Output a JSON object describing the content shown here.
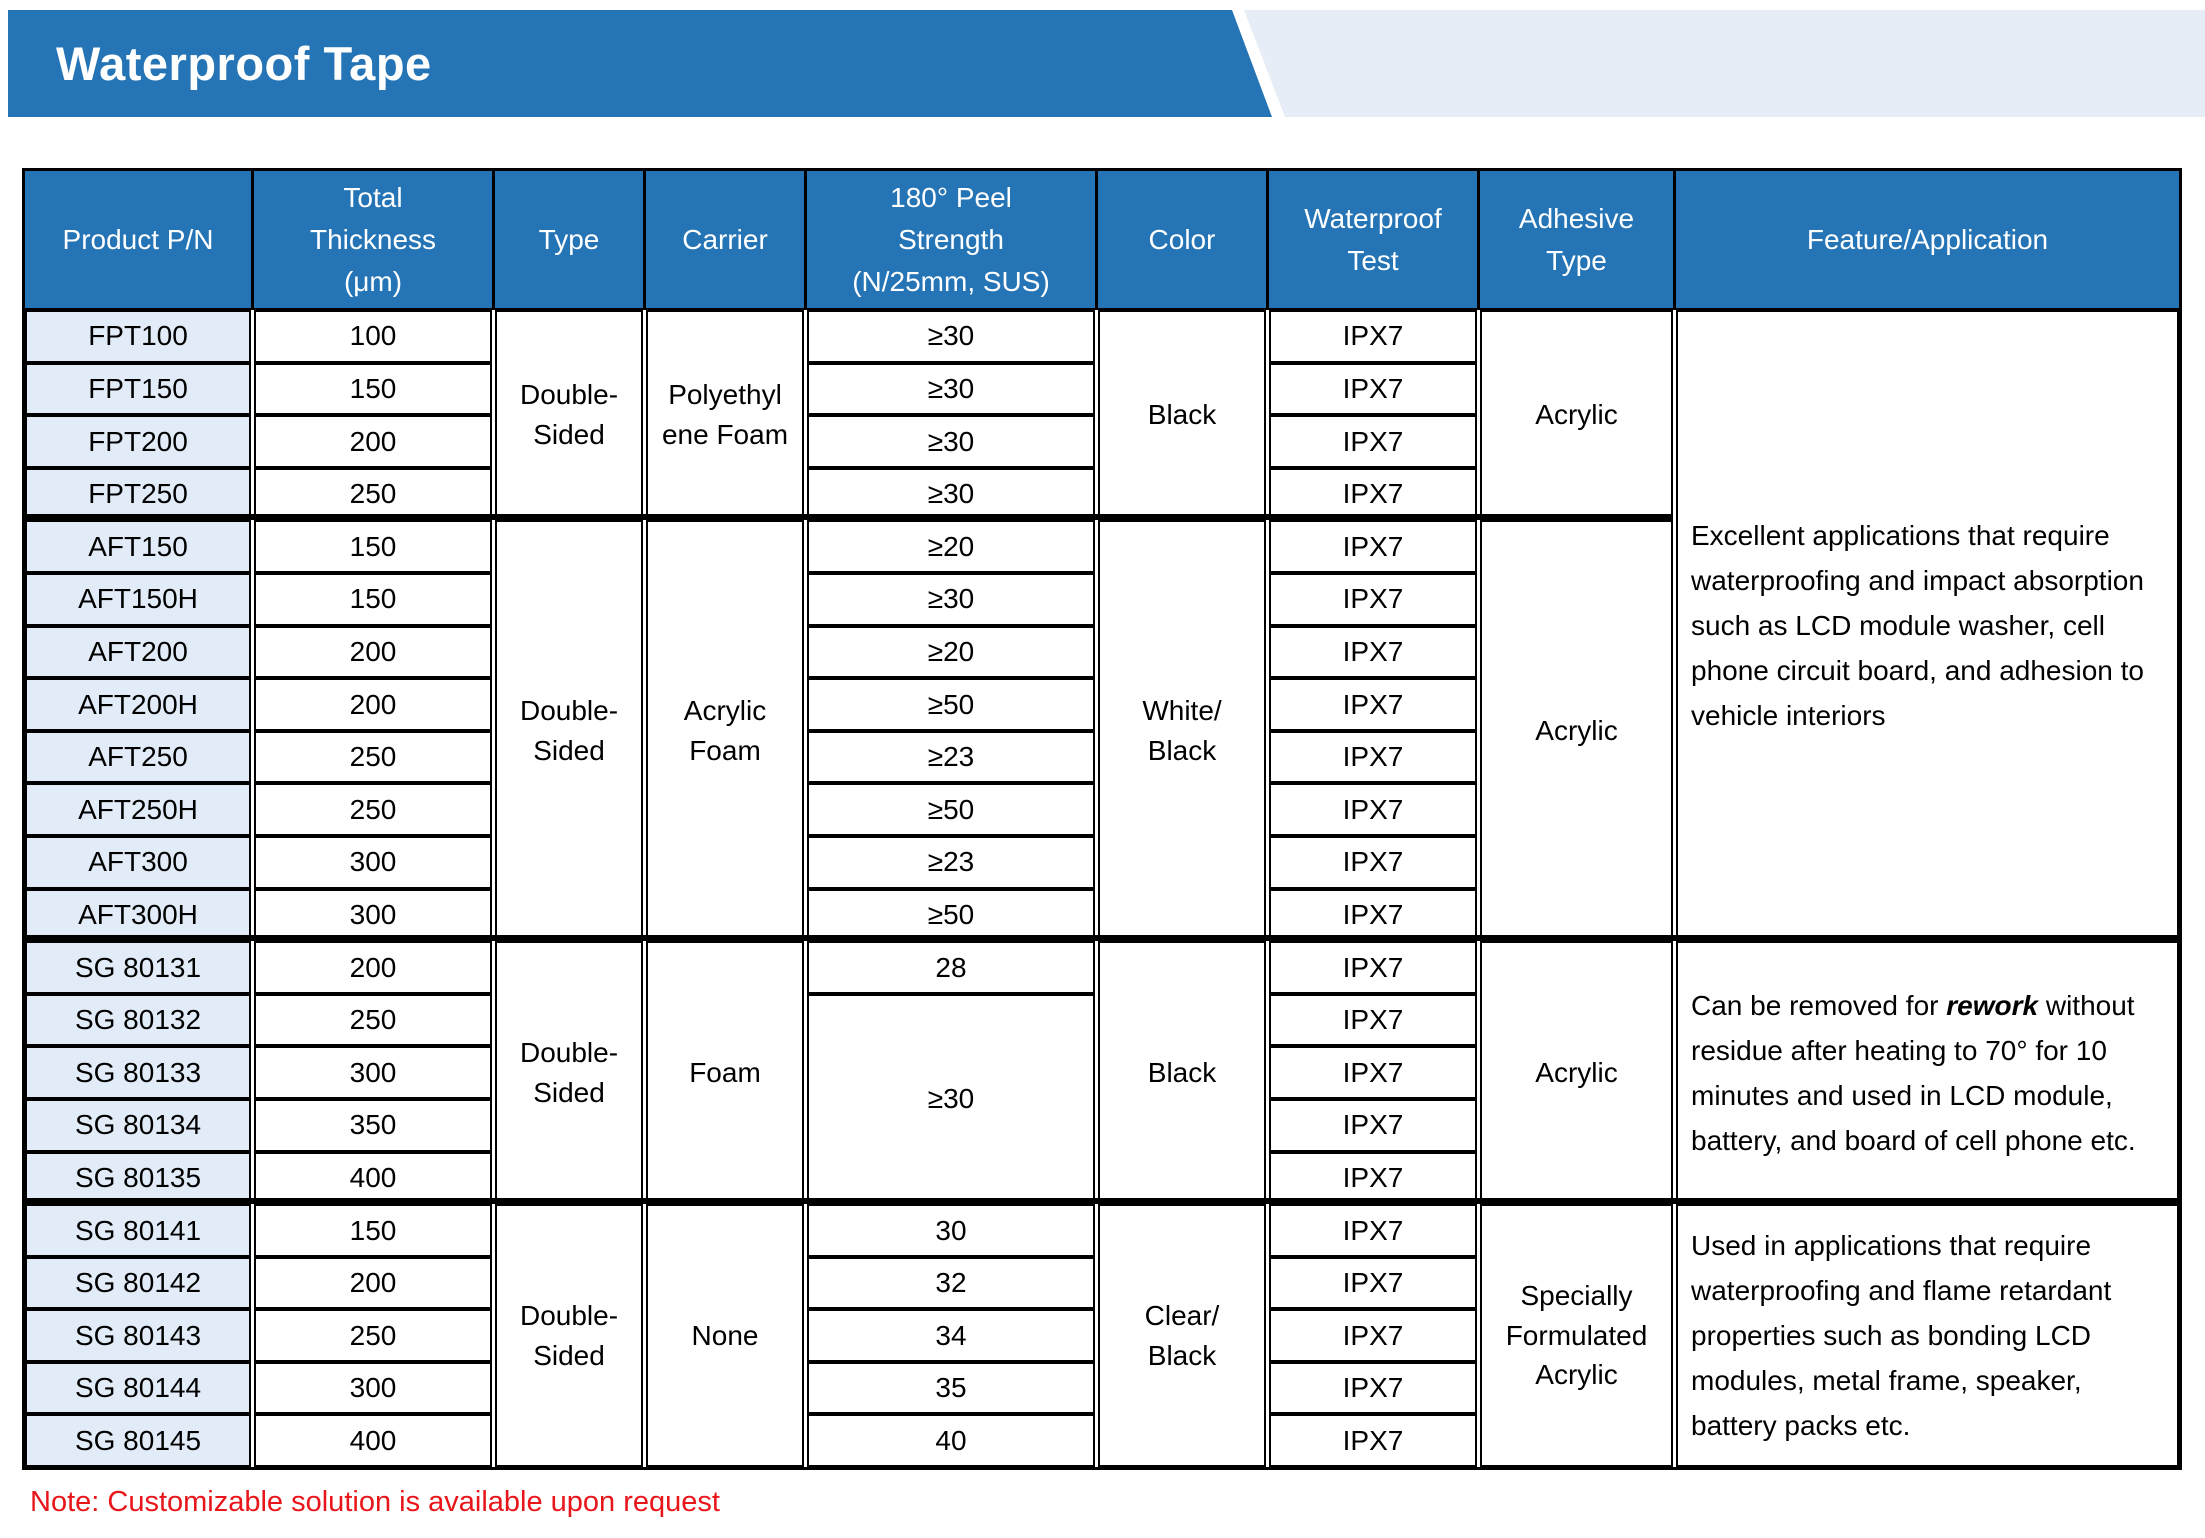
{
  "colors": {
    "blue": "#2474b6",
    "banner-light": "#e7edf6",
    "row-alt": "#e2ecf8",
    "note-red": "#e8151b",
    "border": "#000000"
  },
  "banner": {
    "title": "Waterproof Tape"
  },
  "note": "Note: Customizable solution is available upon request",
  "table": {
    "headers": [
      {
        "c": 1,
        "text": "Product P/N"
      },
      {
        "c": 2,
        "text": "Total\nThickness\n(μm)"
      },
      {
        "c": 3,
        "text": "Type"
      },
      {
        "c": 4,
        "text": "Carrier"
      },
      {
        "c": 5,
        "text": "180° Peel\nStrength\n(N/25mm, SUS)"
      },
      {
        "c": 6,
        "text": "Color"
      },
      {
        "c": 7,
        "text": "Waterproof\nTest"
      },
      {
        "c": 8,
        "text": "Adhesive\nType"
      },
      {
        "c": 9,
        "text": "Feature/Application"
      }
    ],
    "cells": [
      {
        "c": 1,
        "r": 1,
        "cls": "pn",
        "text": "FPT100"
      },
      {
        "c": 1,
        "r": 2,
        "cls": "pn",
        "text": "FPT150"
      },
      {
        "c": 1,
        "r": 3,
        "cls": "pn",
        "text": "FPT200"
      },
      {
        "c": 1,
        "r": 4,
        "cls": "pn",
        "text": "FPT250"
      },
      {
        "c": 2,
        "r": 1,
        "text": "100"
      },
      {
        "c": 2,
        "r": 2,
        "text": "150"
      },
      {
        "c": 2,
        "r": 3,
        "text": "200"
      },
      {
        "c": 2,
        "r": 4,
        "text": "250"
      },
      {
        "c": 3,
        "r": 1,
        "rs": 4,
        "text": "Double-\nSided"
      },
      {
        "c": 4,
        "r": 1,
        "rs": 4,
        "text": "Polyethyl\nene Foam"
      },
      {
        "c": 5,
        "r": 1,
        "text": "≥30"
      },
      {
        "c": 5,
        "r": 2,
        "text": "≥30"
      },
      {
        "c": 5,
        "r": 3,
        "text": "≥30"
      },
      {
        "c": 5,
        "r": 4,
        "text": "≥30"
      },
      {
        "c": 6,
        "r": 1,
        "rs": 4,
        "text": "Black"
      },
      {
        "c": 7,
        "r": 1,
        "text": "IPX7"
      },
      {
        "c": 7,
        "r": 2,
        "text": "IPX7"
      },
      {
        "c": 7,
        "r": 3,
        "text": "IPX7"
      },
      {
        "c": 7,
        "r": 4,
        "text": "IPX7"
      },
      {
        "c": 8,
        "r": 1,
        "rs": 4,
        "text": "Acrylic"
      },
      {
        "c": 1,
        "r": 5,
        "cls": "pn",
        "text": "AFT150"
      },
      {
        "c": 1,
        "r": 6,
        "cls": "pn",
        "text": "AFT150H"
      },
      {
        "c": 1,
        "r": 7,
        "cls": "pn",
        "text": "AFT200"
      },
      {
        "c": 1,
        "r": 8,
        "cls": "pn",
        "text": "AFT200H"
      },
      {
        "c": 1,
        "r": 9,
        "cls": "pn",
        "text": "AFT250"
      },
      {
        "c": 1,
        "r": 10,
        "cls": "pn",
        "text": "AFT250H"
      },
      {
        "c": 1,
        "r": 11,
        "cls": "pn",
        "text": "AFT300"
      },
      {
        "c": 1,
        "r": 12,
        "cls": "pn",
        "text": "AFT300H"
      },
      {
        "c": 2,
        "r": 5,
        "text": "150"
      },
      {
        "c": 2,
        "r": 6,
        "text": "150"
      },
      {
        "c": 2,
        "r": 7,
        "text": "200"
      },
      {
        "c": 2,
        "r": 8,
        "text": "200"
      },
      {
        "c": 2,
        "r": 9,
        "text": "250"
      },
      {
        "c": 2,
        "r": 10,
        "text": "250"
      },
      {
        "c": 2,
        "r": 11,
        "text": "300"
      },
      {
        "c": 2,
        "r": 12,
        "text": "300"
      },
      {
        "c": 3,
        "r": 5,
        "rs": 8,
        "text": "Double-\nSided"
      },
      {
        "c": 4,
        "r": 5,
        "rs": 8,
        "text": "Acrylic\nFoam"
      },
      {
        "c": 5,
        "r": 5,
        "text": "≥20"
      },
      {
        "c": 5,
        "r": 6,
        "text": "≥30"
      },
      {
        "c": 5,
        "r": 7,
        "text": "≥20"
      },
      {
        "c": 5,
        "r": 8,
        "text": "≥50"
      },
      {
        "c": 5,
        "r": 9,
        "text": "≥23"
      },
      {
        "c": 5,
        "r": 10,
        "text": "≥50"
      },
      {
        "c": 5,
        "r": 11,
        "text": "≥23"
      },
      {
        "c": 5,
        "r": 12,
        "text": "≥50"
      },
      {
        "c": 6,
        "r": 5,
        "rs": 8,
        "text": "White/\nBlack"
      },
      {
        "c": 7,
        "r": 5,
        "text": "IPX7"
      },
      {
        "c": 7,
        "r": 6,
        "text": "IPX7"
      },
      {
        "c": 7,
        "r": 7,
        "text": "IPX7"
      },
      {
        "c": 7,
        "r": 8,
        "text": "IPX7"
      },
      {
        "c": 7,
        "r": 9,
        "text": "IPX7"
      },
      {
        "c": 7,
        "r": 10,
        "text": "IPX7"
      },
      {
        "c": 7,
        "r": 11,
        "text": "IPX7"
      },
      {
        "c": 7,
        "r": 12,
        "text": "IPX7"
      },
      {
        "c": 8,
        "r": 5,
        "rs": 8,
        "text": "Acrylic"
      },
      {
        "c": 9,
        "r": 1,
        "rs": 12,
        "cls": "feature",
        "text": "Excellent applications that require waterproofing and impact absorption such as LCD module washer, cell phone circuit board, and adhesion to vehicle interiors"
      },
      {
        "c": 1,
        "r": 13,
        "cls": "pn",
        "text": "SG 80131"
      },
      {
        "c": 1,
        "r": 14,
        "cls": "pn",
        "text": "SG 80132"
      },
      {
        "c": 1,
        "r": 15,
        "cls": "pn",
        "text": "SG 80133"
      },
      {
        "c": 1,
        "r": 16,
        "cls": "pn",
        "text": "SG 80134"
      },
      {
        "c": 1,
        "r": 17,
        "cls": "pn",
        "text": "SG 80135"
      },
      {
        "c": 2,
        "r": 13,
        "text": "200"
      },
      {
        "c": 2,
        "r": 14,
        "text": "250"
      },
      {
        "c": 2,
        "r": 15,
        "text": "300"
      },
      {
        "c": 2,
        "r": 16,
        "text": "350"
      },
      {
        "c": 2,
        "r": 17,
        "text": "400"
      },
      {
        "c": 3,
        "r": 13,
        "rs": 5,
        "text": "Double-\nSided"
      },
      {
        "c": 4,
        "r": 13,
        "rs": 5,
        "text": "Foam"
      },
      {
        "c": 5,
        "r": 13,
        "text": "28"
      },
      {
        "c": 5,
        "r": 14,
        "rs": 4,
        "text": "≥30"
      },
      {
        "c": 6,
        "r": 13,
        "rs": 5,
        "text": "Black"
      },
      {
        "c": 7,
        "r": 13,
        "text": "IPX7"
      },
      {
        "c": 7,
        "r": 14,
        "text": "IPX7"
      },
      {
        "c": 7,
        "r": 15,
        "text": "IPX7"
      },
      {
        "c": 7,
        "r": 16,
        "text": "IPX7"
      },
      {
        "c": 7,
        "r": 17,
        "text": "IPX7"
      },
      {
        "c": 8,
        "r": 13,
        "rs": 5,
        "text": "Acrylic"
      },
      {
        "c": 9,
        "r": 13,
        "rs": 5,
        "cls": "feature",
        "parts": [
          {
            "t": "Can be removed for "
          },
          {
            "t": "rework",
            "b": true
          },
          {
            "t": " without residue after heating to 70° for 10 minutes and used in LCD module, battery, and board of cell phone etc."
          }
        ]
      },
      {
        "c": 1,
        "r": 18,
        "cls": "pn",
        "text": "SG 80141"
      },
      {
        "c": 1,
        "r": 19,
        "cls": "pn",
        "text": "SG 80142"
      },
      {
        "c": 1,
        "r": 20,
        "cls": "pn",
        "text": "SG 80143"
      },
      {
        "c": 1,
        "r": 21,
        "cls": "pn",
        "text": "SG 80144"
      },
      {
        "c": 1,
        "r": 22,
        "cls": "pn",
        "text": "SG 80145"
      },
      {
        "c": 2,
        "r": 18,
        "text": "150"
      },
      {
        "c": 2,
        "r": 19,
        "text": "200"
      },
      {
        "c": 2,
        "r": 20,
        "text": "250"
      },
      {
        "c": 2,
        "r": 21,
        "text": "300"
      },
      {
        "c": 2,
        "r": 22,
        "text": "400"
      },
      {
        "c": 3,
        "r": 18,
        "rs": 5,
        "text": "Double-\nSided"
      },
      {
        "c": 4,
        "r": 18,
        "rs": 5,
        "text": "None"
      },
      {
        "c": 5,
        "r": 18,
        "text": "30"
      },
      {
        "c": 5,
        "r": 19,
        "text": "32"
      },
      {
        "c": 5,
        "r": 20,
        "text": "34"
      },
      {
        "c": 5,
        "r": 21,
        "text": "35"
      },
      {
        "c": 5,
        "r": 22,
        "text": "40"
      },
      {
        "c": 6,
        "r": 18,
        "rs": 5,
        "text": "Clear/\nBlack"
      },
      {
        "c": 7,
        "r": 18,
        "text": "IPX7"
      },
      {
        "c": 7,
        "r": 19,
        "text": "IPX7"
      },
      {
        "c": 7,
        "r": 20,
        "text": "IPX7"
      },
      {
        "c": 7,
        "r": 21,
        "text": "IPX7"
      },
      {
        "c": 7,
        "r": 22,
        "text": "IPX7"
      },
      {
        "c": 8,
        "r": 18,
        "rs": 5,
        "text": "Specially\nFormulated\nAcrylic"
      },
      {
        "c": 9,
        "r": 18,
        "rs": 5,
        "cls": "feature",
        "text": "Used in applications that require waterproofing and flame retardant properties such as bonding LCD modules, metal frame, speaker, battery packs etc."
      }
    ]
  }
}
